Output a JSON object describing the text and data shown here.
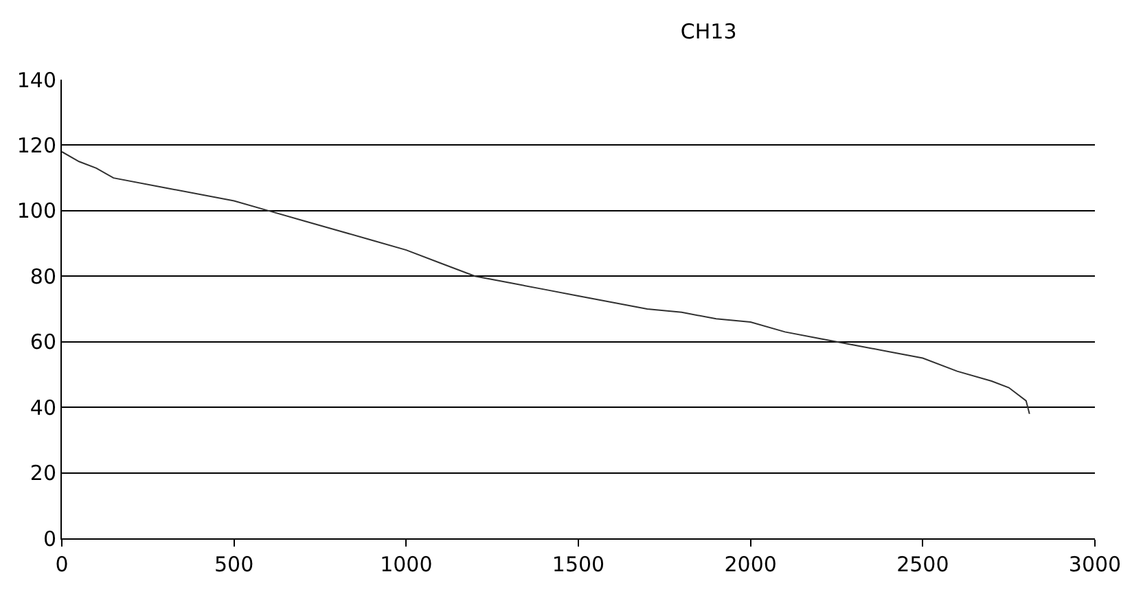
{
  "chart_data": {
    "type": "line",
    "title": "CH13",
    "x": [
      0,
      50,
      100,
      150,
      300,
      500,
      600,
      700,
      800,
      900,
      1000,
      1100,
      1200,
      1300,
      1400,
      1500,
      1600,
      1700,
      1800,
      1900,
      2000,
      2100,
      2200,
      2300,
      2400,
      2500,
      2600,
      2700,
      2750,
      2800,
      2810
    ],
    "series": [
      {
        "color": "#303030",
        "values": [
          118,
          115,
          113,
          110,
          107,
          103,
          100,
          97,
          94,
          91,
          88,
          84,
          80,
          78,
          76,
          74,
          72,
          70,
          69,
          67,
          66,
          63,
          61,
          59,
          57,
          55,
          51,
          48,
          46,
          42,
          38
        ]
      }
    ],
    "xlim": [
      0,
      3000
    ],
    "xticks": [
      0,
      500,
      1000,
      1500,
      2000,
      2500,
      3000
    ],
    "ylim": [
      0,
      140
    ],
    "yticks": [
      0,
      20,
      40,
      60,
      80,
      100,
      120,
      140
    ],
    "grid": "y",
    "legend": false,
    "marker": "none",
    "line_style": "solid"
  }
}
